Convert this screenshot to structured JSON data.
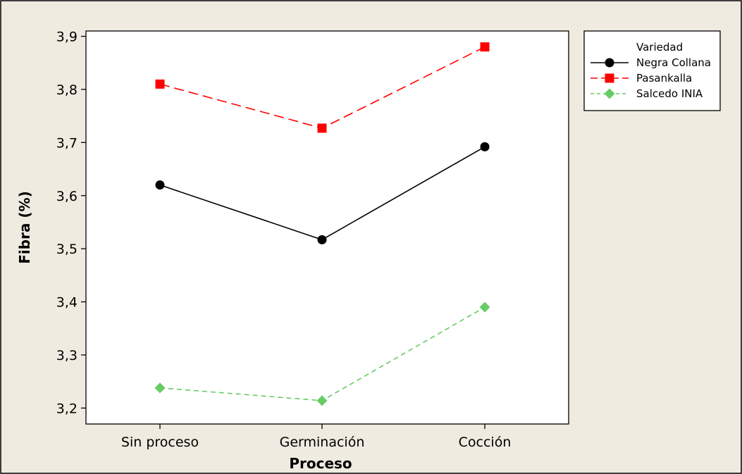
{
  "chart_data": {
    "type": "line",
    "title": "",
    "xlabel": "Proceso",
    "ylabel": "Fibra (%)",
    "categories": [
      "Sin proceso",
      "Germinación",
      "Cocción"
    ],
    "ylim": [
      3.17,
      3.91
    ],
    "yticks": [
      "3,2",
      "3,3",
      "3,4",
      "3,5",
      "3,6",
      "3,7",
      "3,8",
      "3,9"
    ],
    "grid": false,
    "legend": {
      "title": "Variedad",
      "position": "top-right"
    },
    "series": [
      {
        "name": "Negra Collana",
        "values": [
          3.62,
          3.517,
          3.692
        ],
        "color": "#000000",
        "marker": "circle",
        "line": "solid"
      },
      {
        "name": "Pasankalla",
        "values": [
          3.81,
          3.727,
          3.88
        ],
        "color": "#ff0000",
        "marker": "square",
        "line": "dashed"
      },
      {
        "name": "Salcedo INIA",
        "values": [
          3.238,
          3.214,
          3.39
        ],
        "color": "#66cc66",
        "marker": "diamond",
        "line": "dotted-dash"
      }
    ],
    "colors": {
      "outer_background": "#efebe0",
      "plot_background": "#ffffff"
    }
  }
}
